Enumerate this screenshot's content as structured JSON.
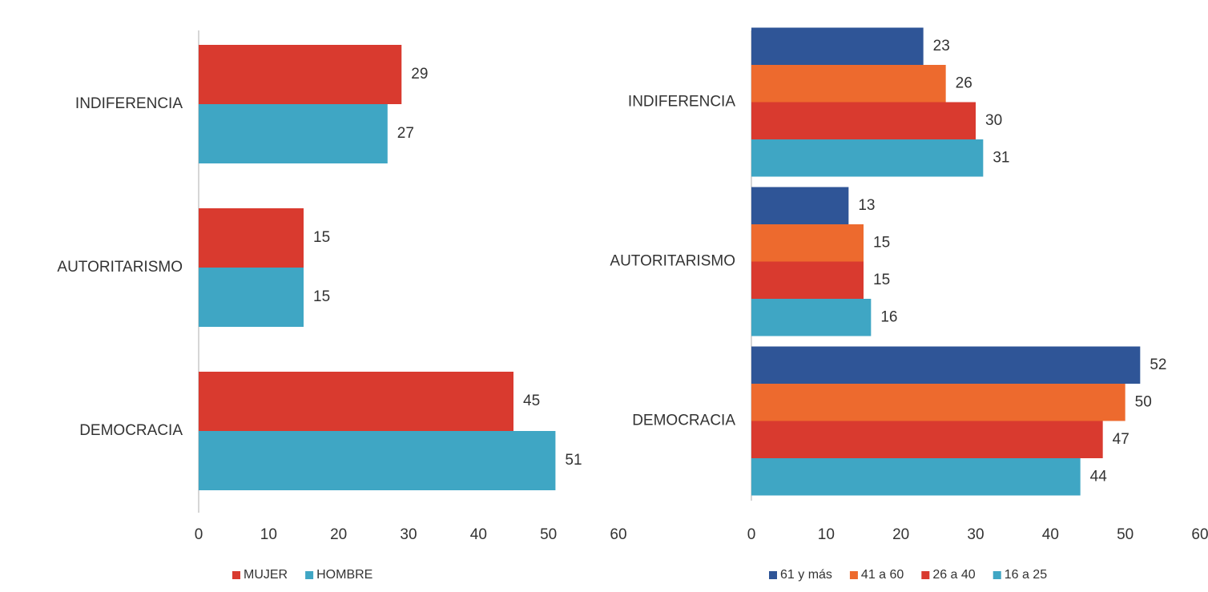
{
  "chart_data": [
    {
      "type": "bar",
      "orientation": "horizontal",
      "categories": [
        "INDIFERENCIA",
        "AUTORITARISMO",
        "DEMOCRACIA"
      ],
      "series": [
        {
          "name": "MUJER",
          "color": "#d93a2f",
          "values": [
            29,
            15,
            45
          ]
        },
        {
          "name": "HOMBRE",
          "color": "#3fa6c4",
          "values": [
            27,
            15,
            51
          ]
        }
      ],
      "xlim": [
        0,
        60
      ],
      "xticks": [
        0,
        10,
        20,
        30,
        40,
        50,
        60
      ],
      "grid": false,
      "legend": "bottom"
    },
    {
      "type": "bar",
      "orientation": "horizontal",
      "categories": [
        "INDIFERENCIA",
        "AUTORITARISMO",
        "DEMOCRACIA"
      ],
      "series": [
        {
          "name": "61 y más",
          "color": "#2f5597",
          "values": [
            23,
            13,
            52
          ]
        },
        {
          "name": "41 a 60",
          "color": "#ed6a2e",
          "values": [
            26,
            15,
            50
          ]
        },
        {
          "name": "26 a 40",
          "color": "#d93a2f",
          "values": [
            30,
            15,
            47
          ]
        },
        {
          "name": "16 a 25",
          "color": "#3fa6c4",
          "values": [
            31,
            16,
            44
          ]
        }
      ],
      "xlim": [
        0,
        60
      ],
      "xticks": [
        0,
        10,
        20,
        30,
        40,
        50,
        60
      ],
      "grid": false,
      "legend": "bottom"
    }
  ]
}
